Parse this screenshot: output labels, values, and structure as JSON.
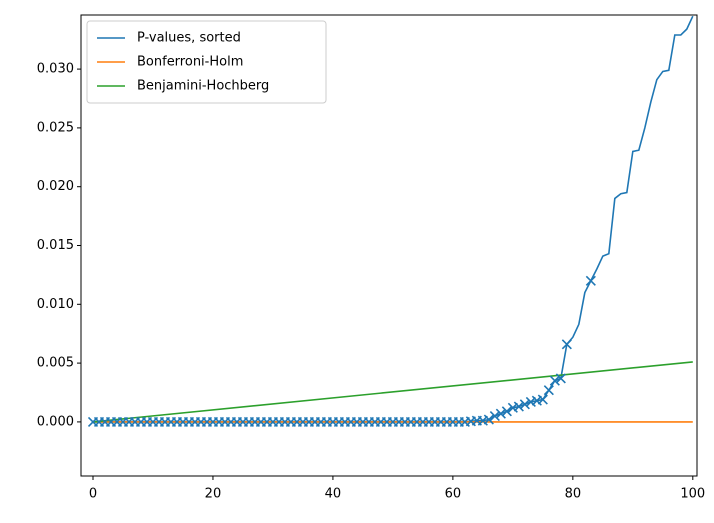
{
  "chart_data": {
    "type": "line",
    "xlim": [
      -2,
      100.7
    ],
    "ylim": [
      -0.0046,
      0.0346
    ],
    "xticks": [
      0,
      20,
      40,
      60,
      80,
      100
    ],
    "yticks": [
      {
        "value": 0,
        "label": "0.000"
      },
      {
        "value": 0.005,
        "label": "0.005"
      },
      {
        "value": 0.01,
        "label": "0.010"
      },
      {
        "value": 0.015,
        "label": "0.015"
      },
      {
        "value": 0.02,
        "label": "0.020"
      },
      {
        "value": 0.025,
        "label": "0.025"
      },
      {
        "value": 0.03,
        "label": "0.030"
      }
    ],
    "legend": "upper left",
    "series": [
      {
        "name": "P-values, sorted",
        "color": "#1f77b4",
        "x": [
          0,
          1,
          2,
          3,
          4,
          5,
          6,
          7,
          8,
          9,
          10,
          11,
          12,
          13,
          14,
          15,
          16,
          17,
          18,
          19,
          20,
          21,
          22,
          23,
          24,
          25,
          26,
          27,
          28,
          29,
          30,
          31,
          32,
          33,
          34,
          35,
          36,
          37,
          38,
          39,
          40,
          41,
          42,
          43,
          44,
          45,
          46,
          47,
          48,
          49,
          50,
          51,
          52,
          53,
          54,
          55,
          56,
          57,
          58,
          59,
          60,
          61,
          62,
          63,
          64,
          65,
          66,
          67,
          68,
          69,
          70,
          71,
          72,
          73,
          74,
          75,
          76,
          77,
          78,
          79,
          80,
          81,
          82,
          83,
          84,
          85,
          86,
          87,
          88,
          89,
          90,
          91,
          92,
          93,
          94,
          95,
          96,
          97,
          98,
          99,
          100
        ],
        "values": [
          0,
          0,
          0,
          0,
          0,
          0,
          0,
          0,
          0,
          0,
          0,
          0,
          0,
          0,
          0,
          0,
          0,
          0,
          0,
          0,
          0,
          0,
          0,
          0,
          0,
          0,
          0,
          0,
          0,
          0,
          0,
          0,
          0,
          0,
          0,
          0,
          0,
          0,
          0,
          0,
          0,
          0,
          0,
          0,
          0,
          0,
          0,
          0,
          0,
          0,
          0,
          0,
          0,
          0,
          0,
          0,
          0,
          0,
          0,
          0,
          0,
          0,
          0,
          5e-05,
          0.0001,
          0.0001,
          0.0002,
          0.0005,
          0.0007,
          0.0009,
          0.0012,
          0.0013,
          0.0015,
          0.0017,
          0.0018,
          0.0019,
          0.0027,
          0.0035,
          0.0037,
          0.0066,
          0.0072,
          0.0083,
          0.011,
          0.012,
          0.013,
          0.0141,
          0.0143,
          0.019,
          0.0194,
          0.0195,
          0.023,
          0.0231,
          0.025,
          0.0272,
          0.0291,
          0.0298,
          0.0299,
          0.0329,
          0.0329,
          0.0334,
          0.0345
        ]
      },
      {
        "name": "Bonferroni-Holm",
        "color": "#ff7f0e",
        "x": [
          0,
          100
        ],
        "values": [
          0,
          0
        ]
      },
      {
        "name": "Benjamini-Hochberg",
        "color": "#2ca02c",
        "x": [
          0,
          100
        ],
        "values": [
          0,
          0.0051
        ]
      },
      {
        "color": "#1f77b4",
        "marker": "x",
        "x": [
          0,
          1,
          2,
          3,
          4,
          5,
          6,
          7,
          8,
          9,
          10,
          11,
          12,
          13,
          14,
          15,
          16,
          17,
          18,
          19,
          20,
          21,
          22,
          23,
          24,
          25,
          26,
          27,
          28,
          29,
          30,
          31,
          32,
          33,
          34,
          35,
          36,
          37,
          38,
          39,
          40,
          41,
          42,
          43,
          44,
          45,
          46,
          47,
          48,
          49,
          50,
          51,
          52,
          53,
          54,
          55,
          56,
          57,
          58,
          59,
          60,
          61,
          62,
          63,
          64,
          65,
          66,
          67,
          68,
          69,
          70,
          71,
          72,
          73,
          74,
          75,
          76,
          77,
          78,
          79,
          83
        ],
        "values": [
          0,
          0,
          0,
          0,
          0,
          0,
          0,
          0,
          0,
          0,
          0,
          0,
          0,
          0,
          0,
          0,
          0,
          0,
          0,
          0,
          0,
          0,
          0,
          0,
          0,
          0,
          0,
          0,
          0,
          0,
          0,
          0,
          0,
          0,
          0,
          0,
          0,
          0,
          0,
          0,
          0,
          0,
          0,
          0,
          0,
          0,
          0,
          0,
          0,
          0,
          0,
          0,
          0,
          0,
          0,
          0,
          0,
          0,
          0,
          0,
          0,
          0,
          0,
          5e-05,
          0.0001,
          0.0001,
          0.0002,
          0.0005,
          0.0007,
          0.0009,
          0.0012,
          0.0013,
          0.0015,
          0.0017,
          0.0018,
          0.0019,
          0.0027,
          0.0035,
          0.0037,
          0.0066,
          0.012
        ]
      }
    ]
  }
}
